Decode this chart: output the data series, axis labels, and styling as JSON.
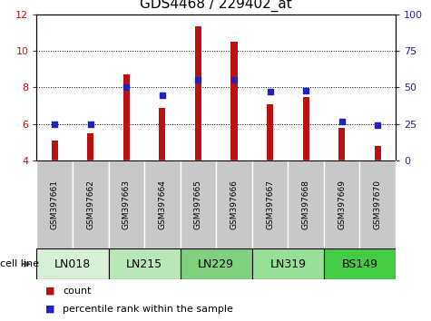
{
  "title": "GDS4468 / 229402_at",
  "samples": [
    "GSM397661",
    "GSM397662",
    "GSM397663",
    "GSM397664",
    "GSM397665",
    "GSM397666",
    "GSM397667",
    "GSM397668",
    "GSM397669",
    "GSM397670"
  ],
  "count_values": [
    5.1,
    5.5,
    8.7,
    6.9,
    11.35,
    10.5,
    7.1,
    7.5,
    5.8,
    4.8
  ],
  "percentile_values": [
    25,
    25,
    50,
    45,
    55,
    55,
    47,
    48,
    27,
    24
  ],
  "cell_lines": [
    {
      "label": "LN018",
      "samples": [
        0,
        1
      ],
      "color": "#d8f0d8"
    },
    {
      "label": "LN215",
      "samples": [
        2,
        3
      ],
      "color": "#b8e8b8"
    },
    {
      "label": "LN229",
      "samples": [
        4,
        5
      ],
      "color": "#80d080"
    },
    {
      "label": "LN319",
      "samples": [
        6,
        7
      ],
      "color": "#98e098"
    },
    {
      "label": "BS149",
      "samples": [
        8,
        9
      ],
      "color": "#44cc44"
    }
  ],
  "ylim_left": [
    4,
    12
  ],
  "ylim_right": [
    0,
    100
  ],
  "yticks_left": [
    4,
    6,
    8,
    10,
    12
  ],
  "yticks_right": [
    0,
    25,
    50,
    75,
    100
  ],
  "bar_color": "#bb1111",
  "dot_color": "#2222bb",
  "bar_bottom": 4,
  "bar_width": 0.18,
  "legend_count_label": "count",
  "legend_pct_label": "percentile rank within the sample",
  "cell_line_label": "cell line",
  "sample_box_color": "#c8c8c8",
  "sample_box_edge": "#ffffff"
}
